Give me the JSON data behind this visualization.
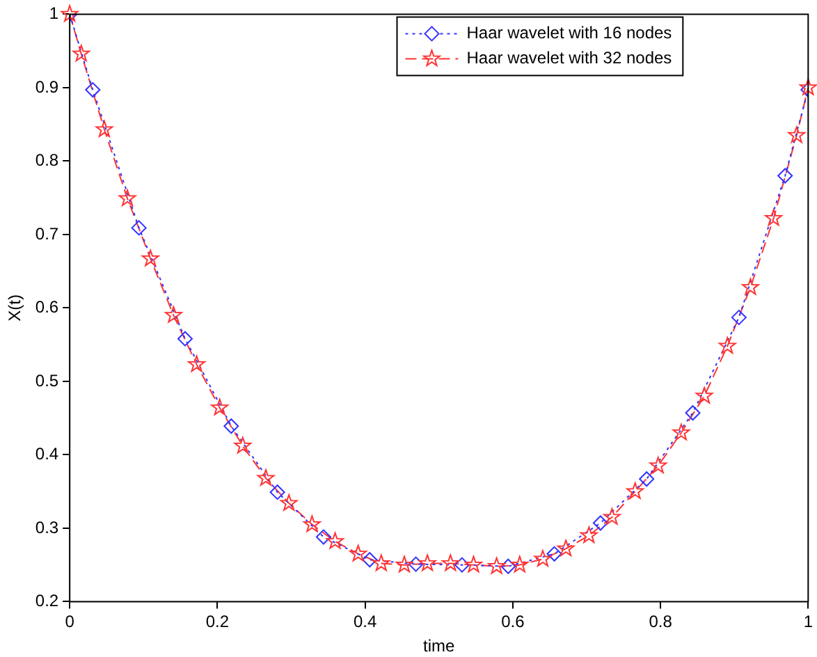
{
  "chart_data": {
    "type": "line",
    "xlabel": "time",
    "ylabel": "X(t)",
    "xlim": [
      0,
      1
    ],
    "ylim": [
      0.2,
      1
    ],
    "xticks": [
      0,
      0.2,
      0.4,
      0.6,
      0.8,
      1
    ],
    "yticks": [
      0.2,
      0.3,
      0.4,
      0.5,
      0.6,
      0.7,
      0.8,
      0.9,
      1
    ],
    "grid": false,
    "legend": "top right",
    "series": [
      {
        "name": "Haar wavelet with 16 nodes",
        "color": "#3333ff",
        "marker": "diamond",
        "line_style": "dotted",
        "x": [
          0,
          0.03125,
          0.09375,
          0.15625,
          0.21875,
          0.28125,
          0.34375,
          0.40625,
          0.46875,
          0.53125,
          0.59375,
          0.65625,
          0.71875,
          0.78125,
          0.84375,
          0.90625,
          0.96875,
          1
        ],
        "values": [
          1,
          0.897,
          0.709,
          0.558,
          0.439,
          0.349,
          0.288,
          0.257,
          0.251,
          0.25,
          0.248,
          0.265,
          0.307,
          0.367,
          0.457,
          0.587,
          0.78,
          0.897
        ]
      },
      {
        "name": "Haar wavelet with 32 nodes",
        "color": "#ff3333",
        "marker": "star",
        "line_style": "dashed",
        "x": [
          0,
          0.015625,
          0.046875,
          0.078125,
          0.109375,
          0.140625,
          0.171875,
          0.203125,
          0.234375,
          0.265625,
          0.296875,
          0.328125,
          0.359375,
          0.390625,
          0.421875,
          0.453125,
          0.484375,
          0.515625,
          0.546875,
          0.578125,
          0.609375,
          0.640625,
          0.671875,
          0.703125,
          0.734375,
          0.765625,
          0.796875,
          0.828125,
          0.859375,
          0.890625,
          0.921875,
          0.953125,
          0.984375,
          1
        ],
        "values": [
          1,
          0.946,
          0.843,
          0.749,
          0.667,
          0.59,
          0.523,
          0.464,
          0.412,
          0.368,
          0.334,
          0.305,
          0.282,
          0.265,
          0.252,
          0.25,
          0.252,
          0.252,
          0.25,
          0.248,
          0.25,
          0.258,
          0.272,
          0.29,
          0.315,
          0.35,
          0.385,
          0.43,
          0.48,
          0.548,
          0.628,
          0.722,
          0.835,
          0.9
        ]
      }
    ]
  }
}
